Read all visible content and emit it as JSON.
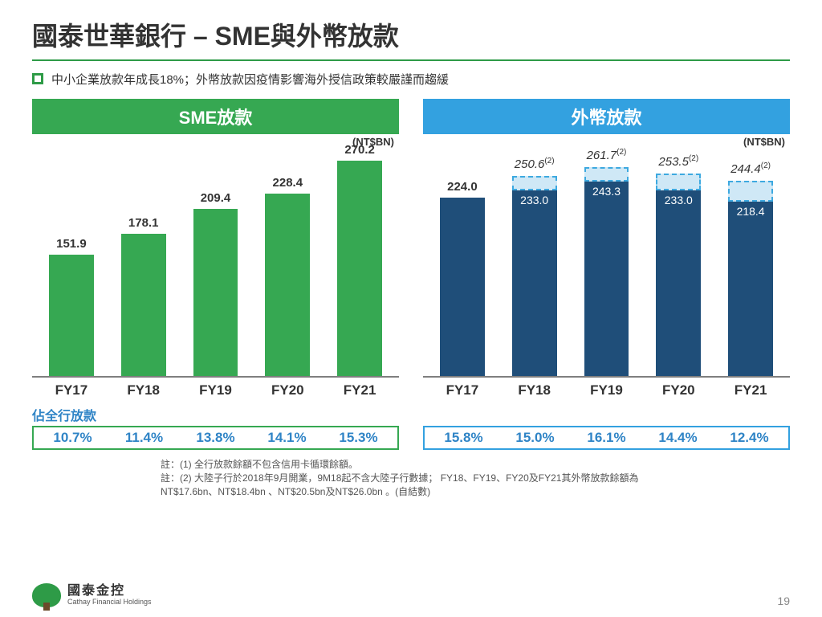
{
  "title": "國泰世華銀行 – SME與外幣放款",
  "bullet": "中小企業放款年成長18%；外幣放款因疫情影響海外授信政策較嚴謹而趨緩",
  "ratio_caption": "佔全行放款",
  "ratio_caption_color": "#2f84c6",
  "sme": {
    "header": "SME放款",
    "header_bg": "#36a852",
    "unit": "(NT$BN)",
    "bar_color": "#36a852",
    "ylim_max": 280,
    "categories": [
      "FY17",
      "FY18",
      "FY19",
      "FY20",
      "FY21"
    ],
    "values": [
      151.9,
      178.1,
      209.4,
      228.4,
      270.2
    ],
    "ratio_border": "#36a852",
    "ratio_text_color": "#2f84c6",
    "ratios": [
      "10.7%",
      "11.4%",
      "13.8%",
      "14.1%",
      "15.3%"
    ]
  },
  "fx": {
    "header": "外幣放款",
    "header_bg": "#33a1e0",
    "unit": "(NT$BN)",
    "solid_color": "#1f4e79",
    "top_fill": "#cfe8f6",
    "top_border": "#3da9e0",
    "ylim_max": 280,
    "categories": [
      "FY17",
      "FY18",
      "FY19",
      "FY20",
      "FY21"
    ],
    "bars": [
      {
        "primary": 224.0,
        "primary_label": "224.0",
        "secondary_total": null,
        "secondary_label": "",
        "note": "",
        "show_inner": false
      },
      {
        "primary": 233.0,
        "primary_label": "233.0",
        "secondary_total": 250.6,
        "secondary_label": "250.6",
        "note": "(2)",
        "show_inner": true
      },
      {
        "primary": 243.3,
        "primary_label": "243.3",
        "secondary_total": 261.7,
        "secondary_label": "261.7",
        "note": "(2)",
        "show_inner": true
      },
      {
        "primary": 233.0,
        "primary_label": "233.0",
        "secondary_total": 253.5,
        "secondary_label": "253.5",
        "note": "(2)",
        "show_inner": true
      },
      {
        "primary": 218.4,
        "primary_label": "218.4",
        "secondary_total": 244.4,
        "secondary_label": "244.4",
        "note": "(2)",
        "show_inner": true
      }
    ],
    "ratio_border": "#33a1e0",
    "ratio_text_color": "#2f84c6",
    "ratios": [
      "15.8%",
      "15.0%",
      "16.1%",
      "14.4%",
      "12.4%"
    ]
  },
  "footnotes": [
    "註：(1) 全行放款餘額不包含信用卡循環餘額。",
    "註：(2) 大陸子行於2018年9月開業，9M18起不含大陸子行數據； FY18、FY19、FY20及FY21其外幣放款餘額為",
    "         NT$17.6bn、NT$18.4bn 、NT$20.5bn及NT$26.0bn 。(自結數)"
  ],
  "logo": {
    "zh": "國泰金控",
    "en": "Cathay Financial Holdings"
  },
  "page_number": "19"
}
